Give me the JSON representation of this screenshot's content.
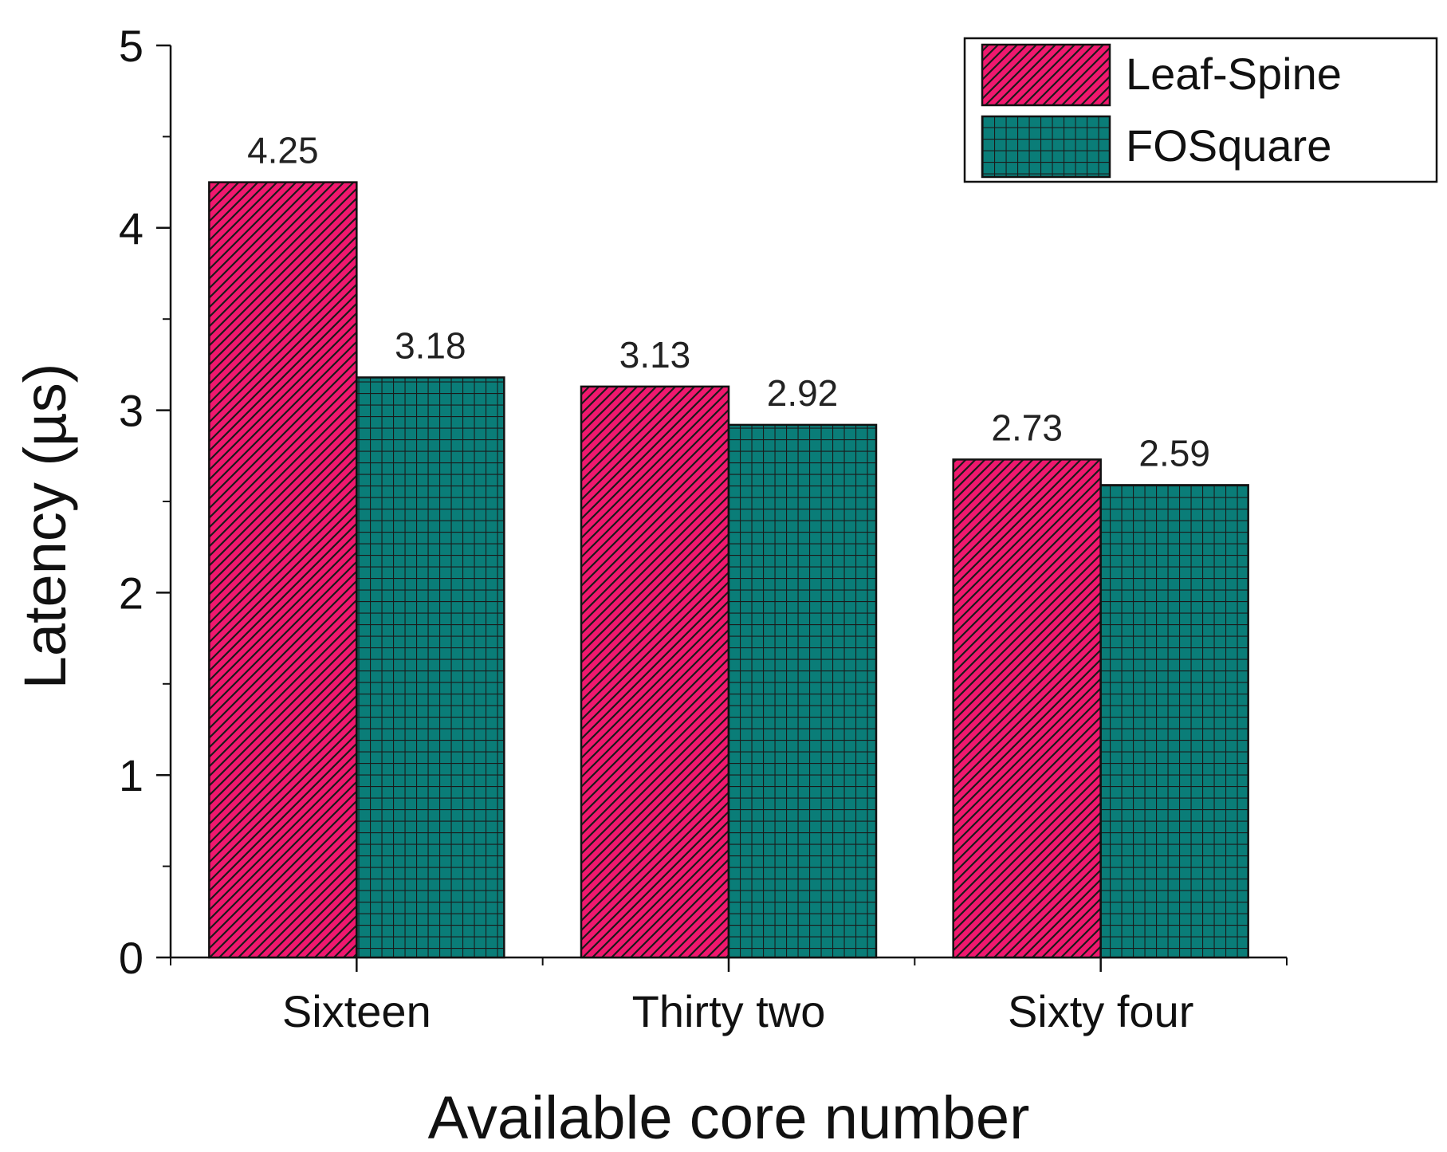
{
  "chart_data": {
    "type": "bar",
    "title": "",
    "xlabel": "Available core number",
    "ylabel": "Latency (µs)",
    "categories": [
      "Sixteen",
      "Thirty two",
      "Sixty four"
    ],
    "series": [
      {
        "name": "Leaf-Spine",
        "values": [
          4.25,
          3.13,
          2.73
        ],
        "labels": [
          "4.25",
          "3.13",
          "2.73"
        ],
        "color": "#f0186e",
        "pattern": "diagonal-hatch"
      },
      {
        "name": "FOSquare",
        "values": [
          3.18,
          2.92,
          2.59
        ],
        "labels": [
          "3.18",
          "2.92",
          "2.59"
        ],
        "color": "#0a7d78",
        "pattern": "grid-hatch"
      }
    ],
    "ylim": [
      0,
      5
    ],
    "yticks": [
      "0",
      "1",
      "2",
      "3",
      "4",
      "5"
    ],
    "grid": false,
    "legend_position": "top-right"
  }
}
